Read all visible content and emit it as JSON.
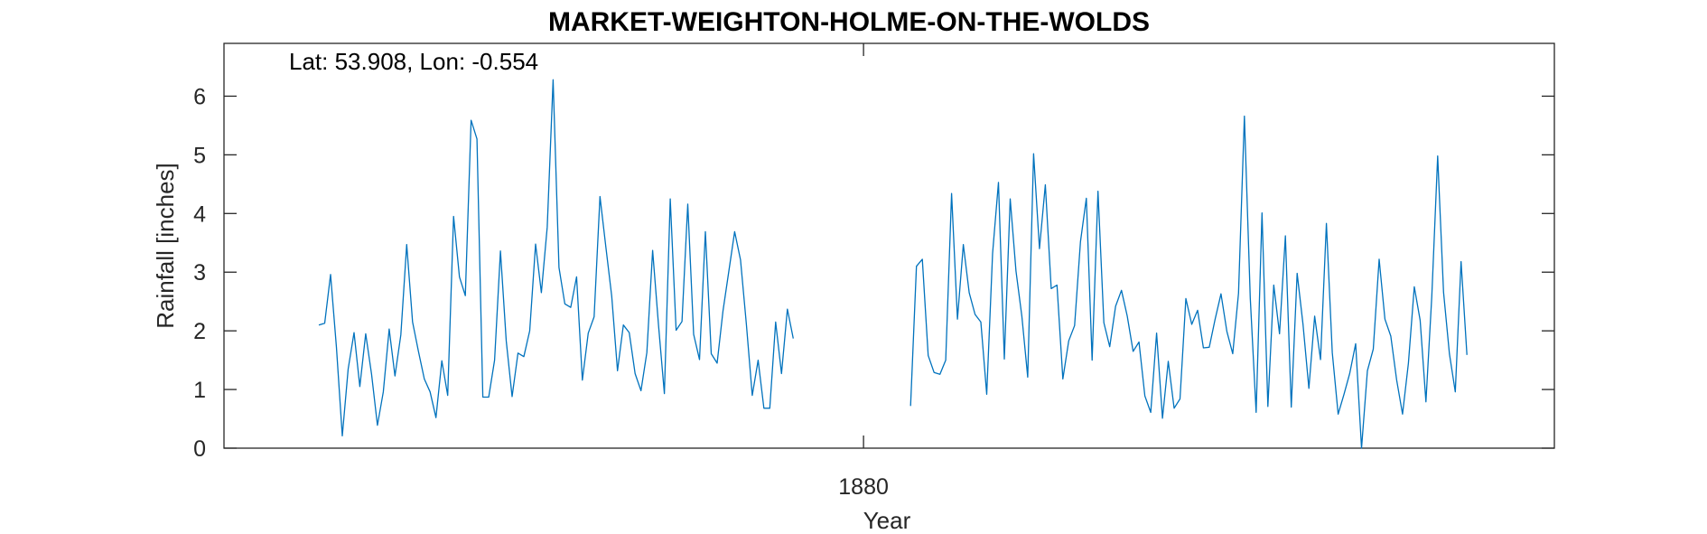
{
  "chart_data": {
    "type": "line",
    "title": "MARKET-WEIGHTON-HOLME-ON-THE-WOLDS",
    "annotation": "Lat: 53.908, Lon: -0.554",
    "xlabel": "Year",
    "ylabel": "Rainfall [inches]",
    "ylim": [
      0,
      6.9
    ],
    "yticks": [
      0,
      1,
      2,
      3,
      4,
      5,
      6
    ],
    "xlim": [
      1870.9,
      1889.83
    ],
    "xticks": [
      1880
    ],
    "xtick_labels": [
      "1880"
    ],
    "grid": false,
    "series": [
      {
        "color": "#0072BD",
        "segments": [
          {
            "x_start": 1872.25,
            "x_step": 0.08333,
            "values": [
              2.1,
              2.13,
              2.96,
              1.72,
              0.21,
              1.35,
              1.97,
              1.05,
              1.95,
              1.26,
              0.39,
              0.96,
              2.03,
              1.23,
              1.93,
              3.47,
              2.15,
              1.65,
              1.18,
              0.96,
              0.52,
              1.49,
              0.9,
              3.95,
              2.92,
              2.6,
              5.59,
              5.27,
              0.87,
              0.87,
              1.5,
              3.36,
              1.83,
              0.88,
              1.62,
              1.56,
              2.0,
              3.48,
              2.65,
              3.77,
              6.28,
              3.08,
              2.46,
              2.4,
              2.92,
              1.16,
              1.96,
              2.24,
              4.29,
              3.43,
              2.59,
              1.32,
              2.1,
              1.97,
              1.27,
              0.98,
              1.63,
              3.37,
              2.1,
              0.93,
              4.25,
              2.01,
              2.16,
              4.16,
              1.94,
              1.51,
              3.69,
              1.61,
              1.45,
              2.34,
              3.01,
              3.69,
              3.21,
              2.11,
              0.9,
              1.5,
              0.68,
              0.68,
              2.15,
              1.27,
              2.37,
              1.87
            ]
          },
          {
            "x_start": 1880.67,
            "x_step": 0.08333,
            "values": [
              0.72,
              3.1,
              3.22,
              1.58,
              1.29,
              1.26,
              1.5,
              4.34,
              2.2,
              3.47,
              2.65,
              2.28,
              2.15,
              0.92,
              3.32,
              4.53,
              1.52,
              4.25,
              3.02,
              2.25,
              1.21,
              5.02,
              3.4,
              4.49,
              2.72,
              2.78,
              1.18,
              1.83,
              2.09,
              3.52,
              4.26,
              1.5,
              4.38,
              2.14,
              1.73,
              2.42,
              2.69,
              2.25,
              1.65,
              1.81,
              0.89,
              0.61,
              1.96,
              0.51,
              1.48,
              0.68,
              0.84,
              2.55,
              2.11,
              2.35,
              1.71,
              1.72,
              2.2,
              2.63,
              1.99,
              1.61,
              2.64,
              5.66,
              2.56,
              0.61,
              4.01,
              0.71,
              2.78,
              1.95,
              3.62,
              0.7,
              2.98,
              2.11,
              1.02,
              2.25,
              1.51,
              3.83,
              1.63,
              0.58,
              0.92,
              1.28,
              1.78,
              0.0,
              1.32,
              1.69,
              3.22,
              2.2,
              1.91,
              1.16,
              0.58,
              1.45,
              2.75,
              2.18,
              0.79,
              2.59,
              4.98,
              2.66,
              1.61,
              0.96,
              3.18,
              1.59
            ]
          }
        ]
      }
    ]
  }
}
